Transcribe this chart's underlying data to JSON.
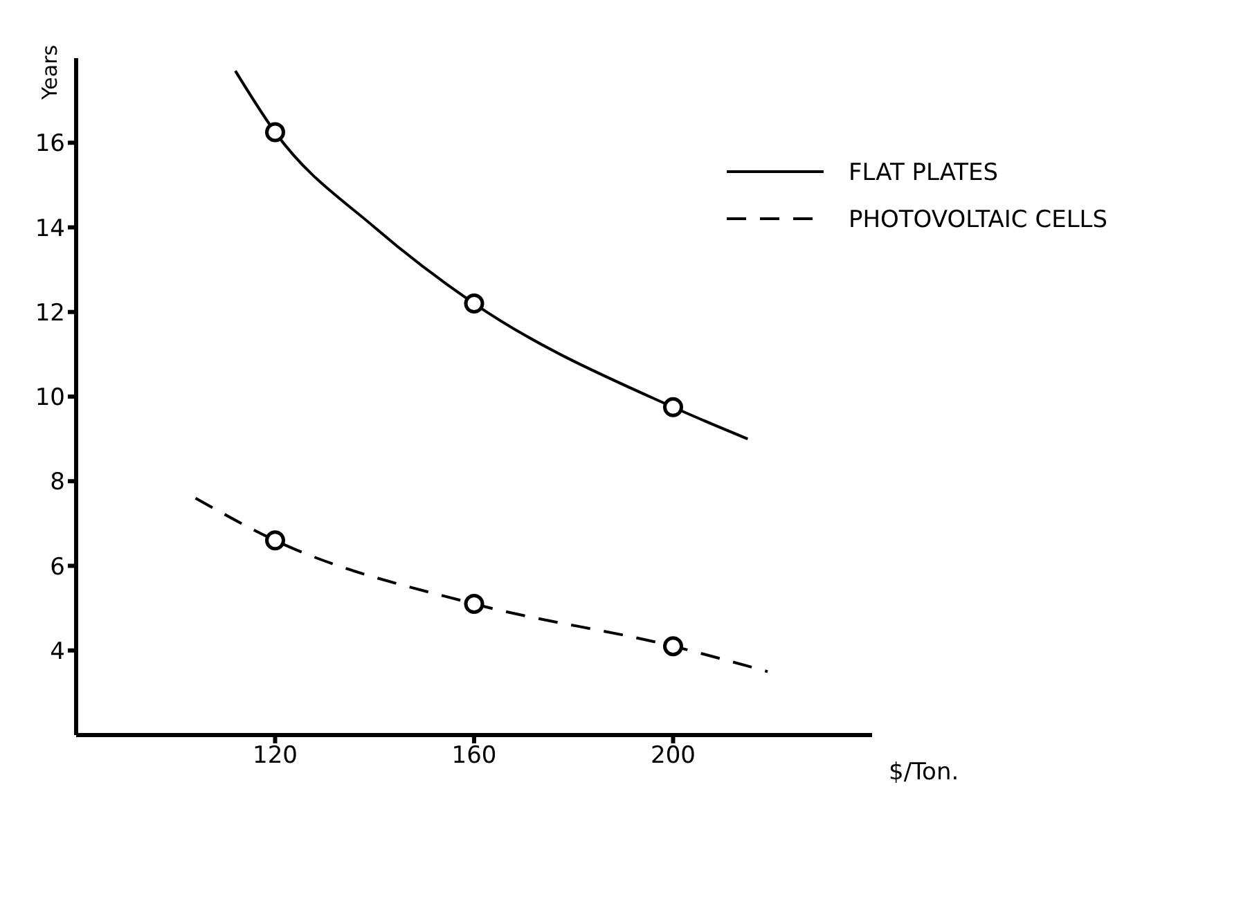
{
  "chart_data": {
    "type": "line",
    "xlabel": "$/Ton.",
    "ylabel": "Years",
    "xlim": [
      80,
      240
    ],
    "xticks": [
      120,
      160,
      200
    ],
    "ylim": [
      2,
      18
    ],
    "yticks": [
      4,
      6,
      8,
      10,
      12,
      14,
      16
    ],
    "grid": false,
    "legend": "top right",
    "series": [
      {
        "name": "FLAT PLATES",
        "color": "#000000",
        "line_style": "solid",
        "marker": "none",
        "x": [
          112,
          120,
          140,
          160,
          200,
          215
        ],
        "values": [
          17.7,
          16.25,
          14.0,
          12.2,
          9.75,
          9.0
        ]
      },
      {
        "name": "PHOTOVOLTAIC CELLS",
        "color": "#000000",
        "line_style": "dashed",
        "marker": "none",
        "x": [
          104,
          120,
          160,
          200,
          219
        ],
        "values": [
          7.6,
          6.6,
          5.1,
          4.1,
          3.5
        ]
      },
      {
        "type": "scatter",
        "color": "#000000",
        "marker": "circle",
        "x": [
          120,
          160,
          200
        ],
        "values": [
          16.25,
          12.2,
          9.75
        ]
      },
      {
        "type": "scatter",
        "color": "#000000",
        "marker": "circle",
        "x": [
          120,
          160,
          200
        ],
        "values": [
          6.6,
          5.1,
          4.1
        ]
      }
    ]
  }
}
